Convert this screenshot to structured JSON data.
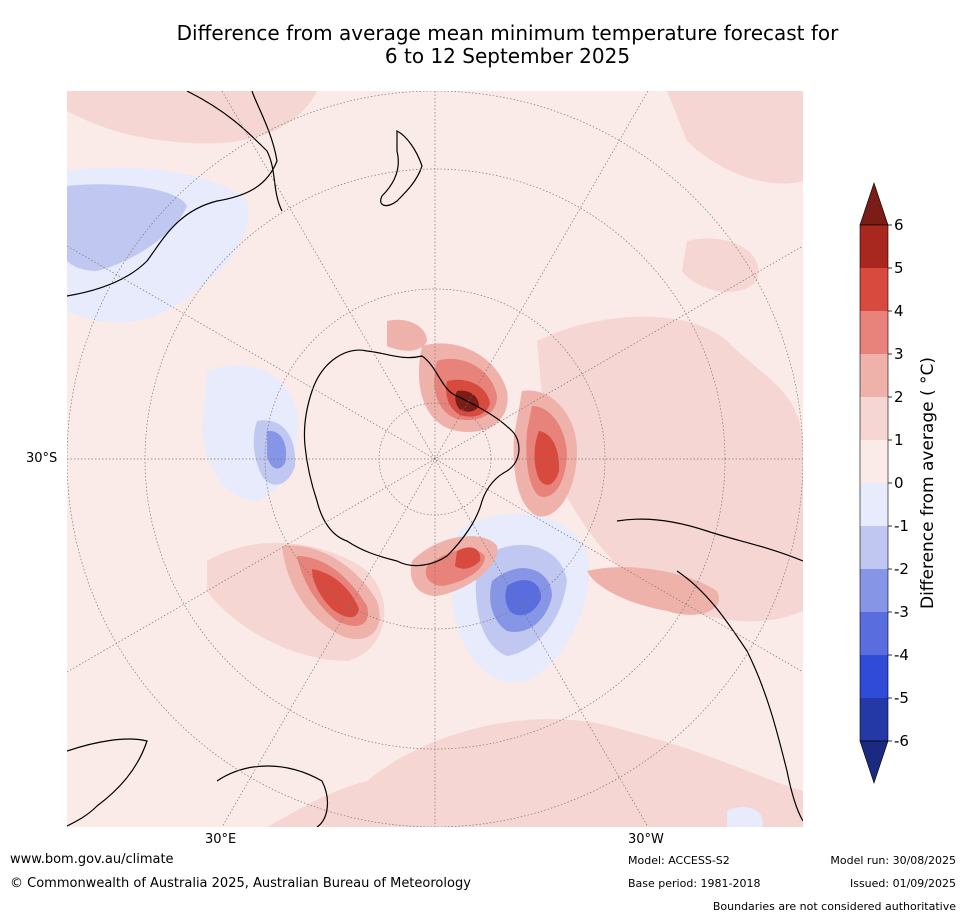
{
  "title_line1": "Difference from average mean minimum temperature forecast for",
  "title_line2": "6 to 12 September 2025",
  "map": {
    "projection": "south-polar stereographic",
    "lat_label": "30°S",
    "lon_labels": [
      "30°E",
      "30°W"
    ],
    "ocean_color": "#fbebe8",
    "regions": [
      "Australia",
      "New Zealand",
      "Antarctica",
      "South America",
      "Africa"
    ]
  },
  "colorbar": {
    "label": "Difference from average ( °C)",
    "ticks": [
      "6",
      "5",
      "4",
      "3",
      "2",
      "1",
      "0",
      "-1",
      "-2",
      "-3",
      "-4",
      "-5",
      "-6"
    ],
    "colors_top_to_bottom": [
      "#7a1d17",
      "#a8271f",
      "#d94a3e",
      "#e7837a",
      "#efb2ab",
      "#f6d6d2",
      "#fbebe8",
      "#e8ebfb",
      "#c0c8f1",
      "#8795e6",
      "#5a6ddf",
      "#2f4bd8",
      "#2439a6",
      "#1a2a80"
    ]
  },
  "footer": {
    "url": "www.bom.gov.au/climate",
    "copyright": "© Commonwealth of Australia 2025, Australian Bureau of Meteorology",
    "model": "Model: ACCESS-S2",
    "base_period": "Base period: 1981-2018",
    "model_run": "Model run: 30/08/2025",
    "issued": "Issued: 01/09/2025",
    "boundaries": "Boundaries are not considered authoritative"
  }
}
